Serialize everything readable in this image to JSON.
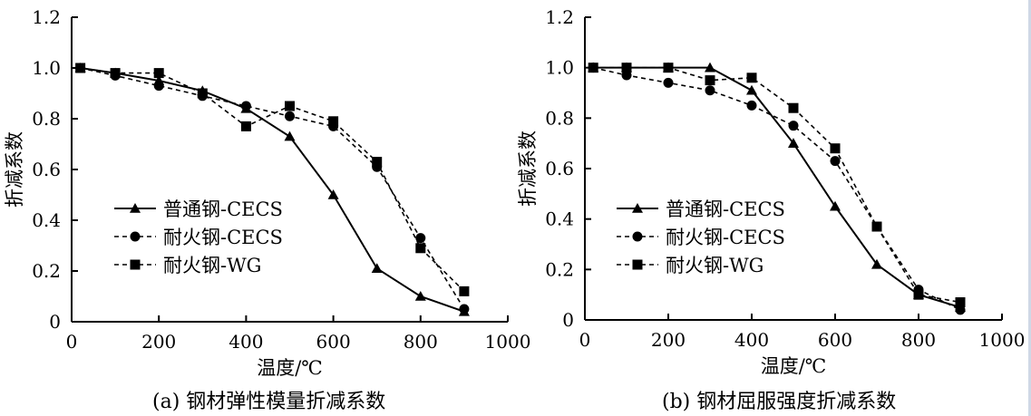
{
  "chart_data": [
    {
      "type": "line",
      "caption": "(a) 钢材弹性模量折减系数",
      "xlabel": "温度/℃",
      "ylabel": "折减系数",
      "xlim": [
        0,
        1000
      ],
      "ylim": [
        0,
        1.2
      ],
      "xticks": [
        "0",
        "200",
        "400",
        "600",
        "800",
        "1000"
      ],
      "yticks": [
        "0",
        "0.2",
        "0.4",
        "0.6",
        "0.8",
        "1.0",
        "1.2"
      ],
      "legend_position": "left",
      "series": [
        {
          "name": "普通钢-CECS",
          "marker": "triangle",
          "line": "solid",
          "x": [
            20,
            100,
            200,
            300,
            400,
            500,
            600,
            700,
            800,
            900
          ],
          "y": [
            1.0,
            0.98,
            0.95,
            0.91,
            0.84,
            0.73,
            0.5,
            0.21,
            0.1,
            0.04
          ]
        },
        {
          "name": "耐火钢-CECS",
          "marker": "circle",
          "line": "dashed",
          "x": [
            20,
            100,
            200,
            300,
            400,
            500,
            600,
            700,
            800,
            900
          ],
          "y": [
            1.0,
            0.97,
            0.93,
            0.89,
            0.85,
            0.81,
            0.77,
            0.61,
            0.33,
            0.05
          ]
        },
        {
          "name": "耐火钢-WG",
          "marker": "square",
          "line": "dashed",
          "x": [
            20,
            100,
            200,
            300,
            400,
            500,
            600,
            700,
            800,
            900
          ],
          "y": [
            1.0,
            0.98,
            0.98,
            0.9,
            0.77,
            0.85,
            0.79,
            0.63,
            0.29,
            0.12
          ]
        }
      ]
    },
    {
      "type": "line",
      "caption": "(b) 钢材屈服强度折减系数",
      "xlabel": "温度/℃",
      "ylabel": "折减系数",
      "xlim": [
        0,
        1000
      ],
      "ylim": [
        0,
        1.2
      ],
      "xticks": [
        "0",
        "200",
        "400",
        "600",
        "800",
        "1000"
      ],
      "yticks": [
        "0",
        "0.2",
        "0.4",
        "0.6",
        "0.8",
        "1.0",
        "1.2"
      ],
      "legend_position": "left",
      "series": [
        {
          "name": "普通钢-CECS",
          "marker": "triangle",
          "line": "solid",
          "x": [
            20,
            100,
            200,
            300,
            400,
            500,
            600,
            700,
            800,
            900
          ],
          "y": [
            1.0,
            1.0,
            1.0,
            1.0,
            0.91,
            0.7,
            0.45,
            0.22,
            0.1,
            0.05
          ]
        },
        {
          "name": "耐火钢-CECS",
          "marker": "circle",
          "line": "dashed",
          "x": [
            20,
            100,
            200,
            300,
            400,
            500,
            600,
            700,
            800,
            900
          ],
          "y": [
            1.0,
            0.97,
            0.94,
            0.91,
            0.85,
            0.77,
            0.63,
            0.37,
            0.12,
            0.04
          ]
        },
        {
          "name": "耐火钢-WG",
          "marker": "square",
          "line": "dashed",
          "x": [
            20,
            100,
            200,
            300,
            400,
            500,
            600,
            700,
            800,
            900
          ],
          "y": [
            1.0,
            1.0,
            1.0,
            0.95,
            0.96,
            0.84,
            0.68,
            0.37,
            0.1,
            0.07
          ]
        }
      ]
    }
  ]
}
